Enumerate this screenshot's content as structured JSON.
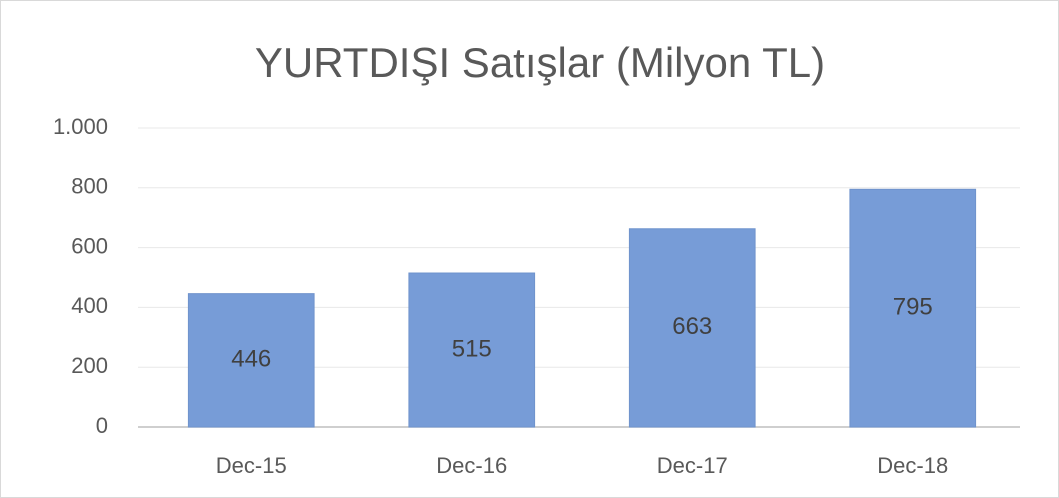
{
  "chart_data": {
    "type": "bar",
    "title": "YURTDIŞI Satışlar (Milyon TL)",
    "categories": [
      "Dec-15",
      "Dec-16",
      "Dec-17",
      "Dec-18"
    ],
    "values": [
      446,
      515,
      663,
      795
    ],
    "color": "#779cd7",
    "ylim": [
      0,
      1000
    ],
    "yticks": [
      0,
      200,
      400,
      600,
      800,
      {
        "value": 1000,
        "label": "1.000"
      }
    ],
    "grid": true
  }
}
